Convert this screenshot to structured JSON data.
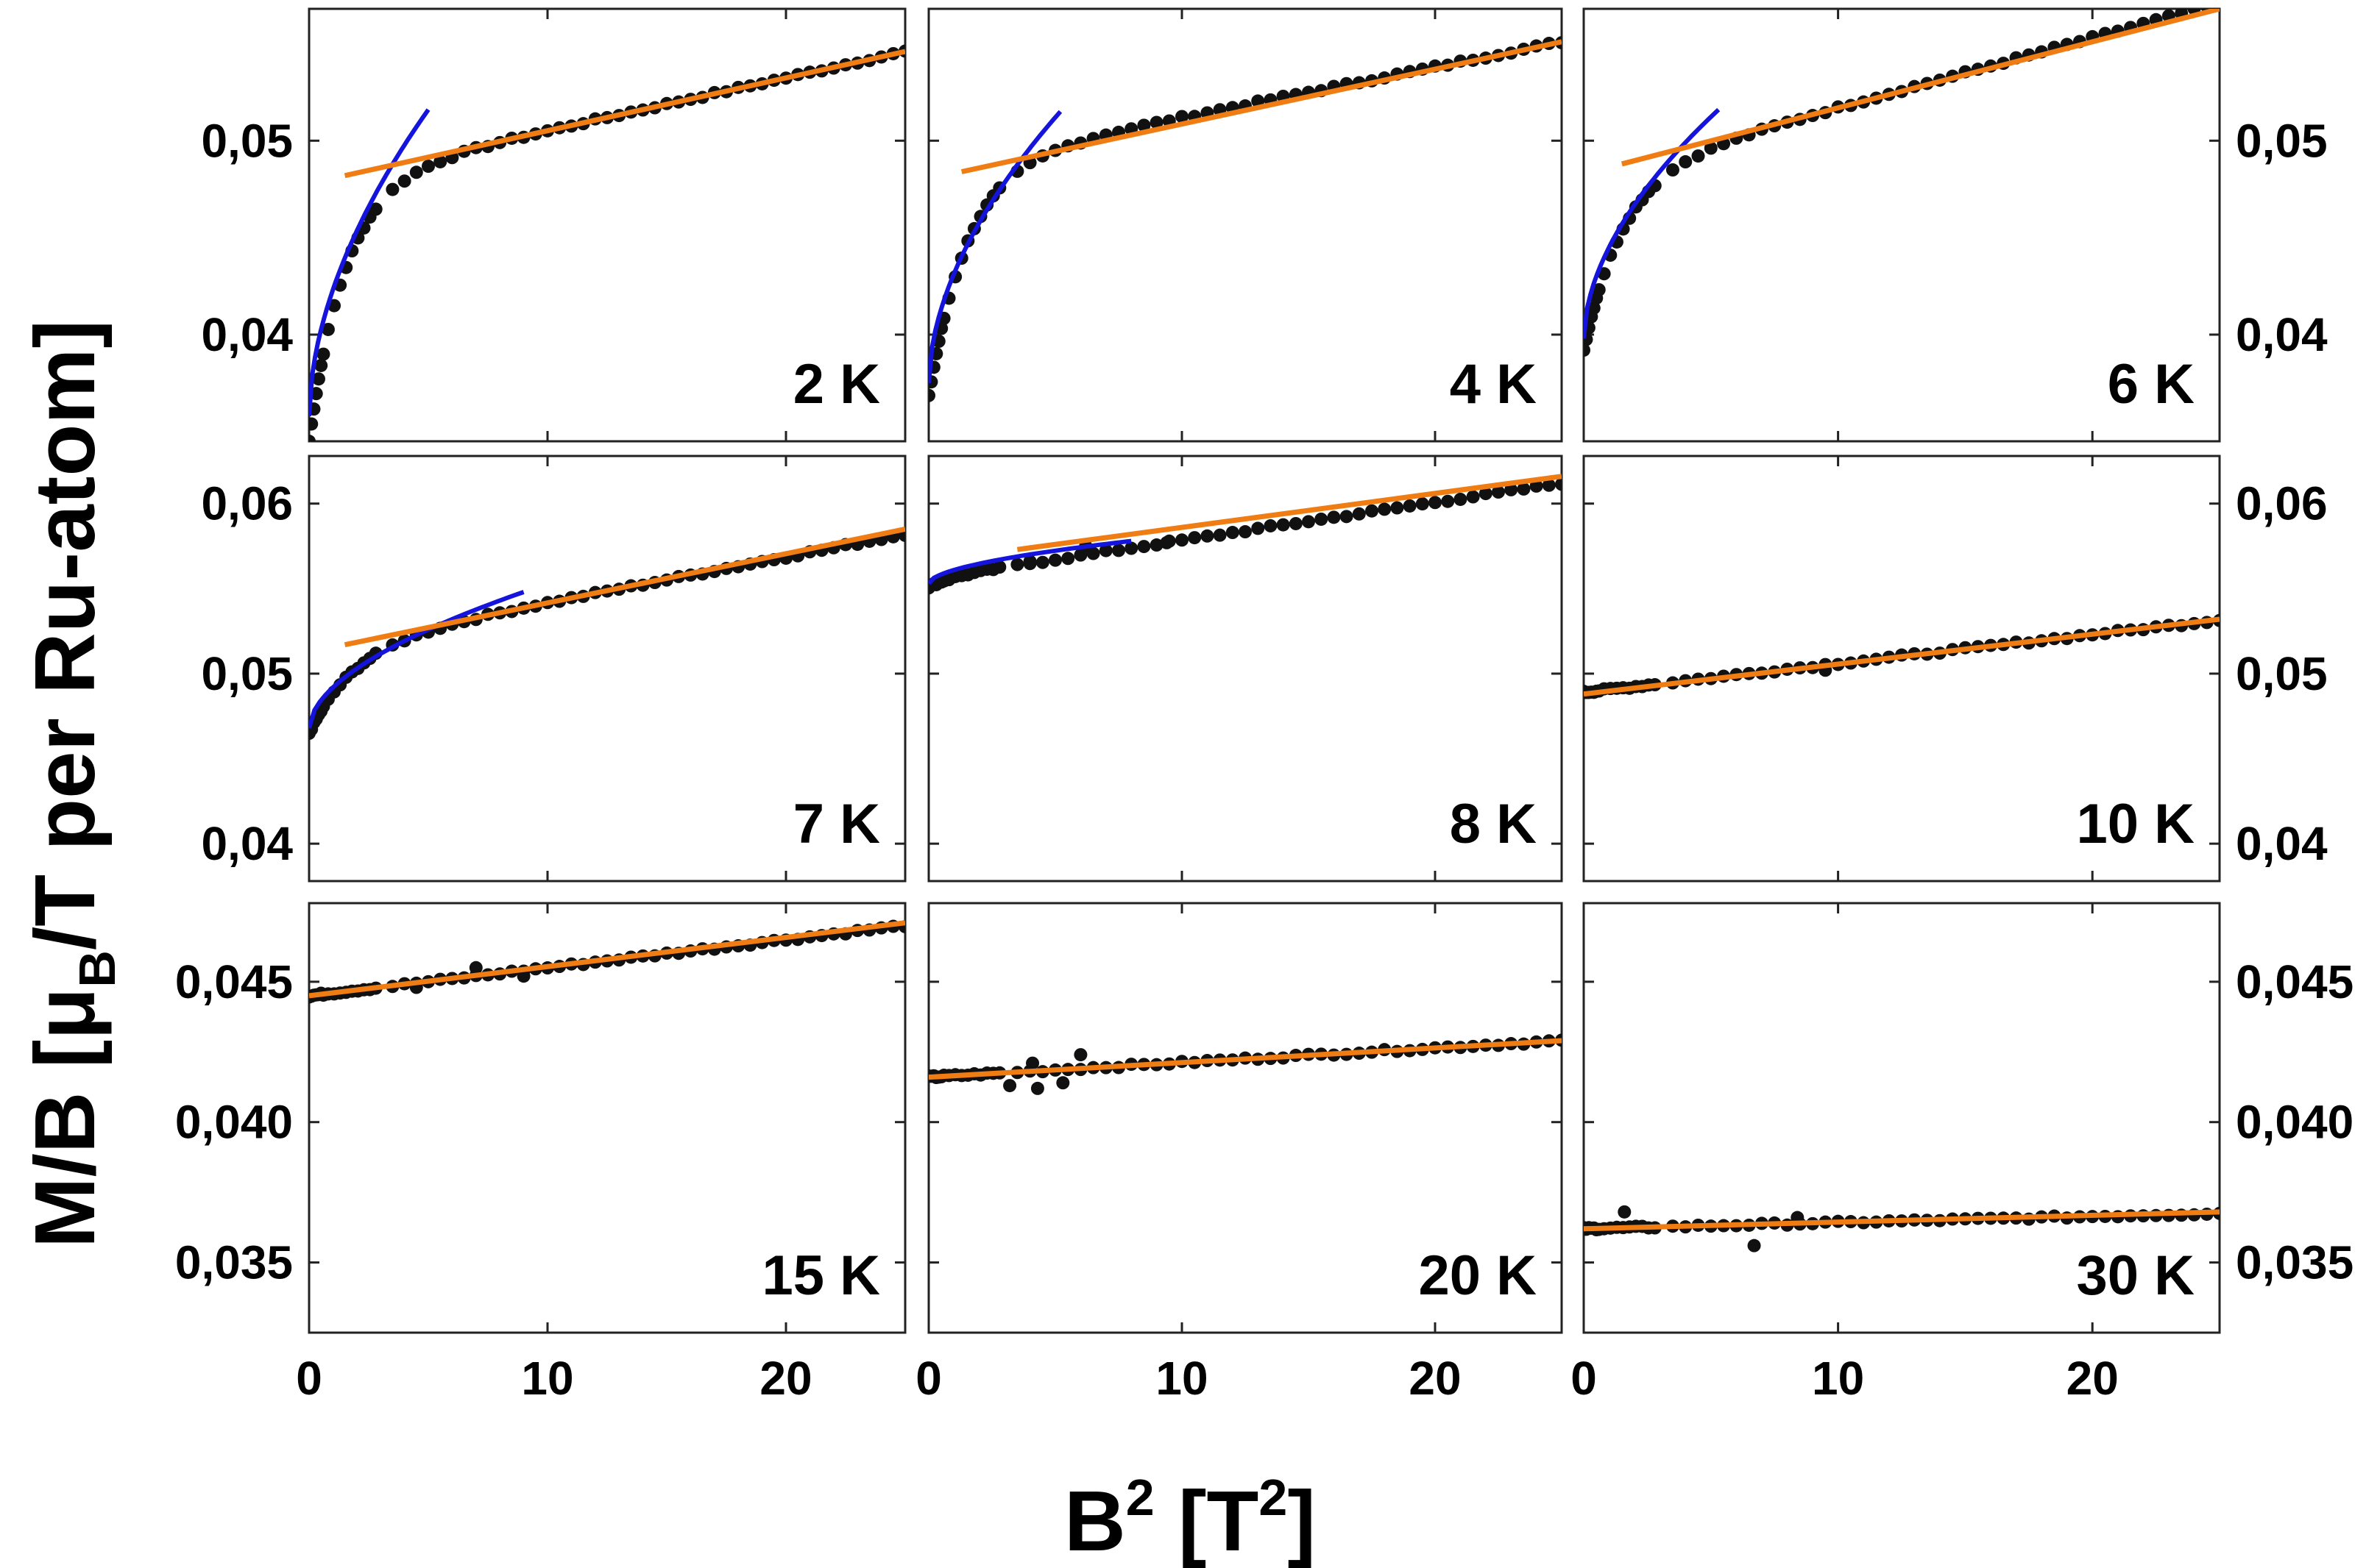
{
  "chart_data": {
    "type": "scatter",
    "layout": "3x3 panel grid",
    "xlabel": {
      "main": "B",
      "sup1": "2",
      "unit_open": " [T",
      "sup2": "2",
      "unit_close": "]"
    },
    "ylabel": {
      "main": "M/B [",
      "mu": "μ",
      "sub": "B",
      "rest": "/T per Ru-atom]"
    },
    "xlim": [
      0,
      25
    ],
    "x_ticks": [
      0,
      10,
      20
    ],
    "x_tick_labels": [
      "0",
      "10",
      "20"
    ],
    "rows": [
      {
        "ylim": [
          0.0345,
          0.0568
        ],
        "y_ticks": [
          0.04,
          0.05
        ],
        "y_tick_labels": [
          "0,04",
          "0,05"
        ]
      },
      {
        "ylim": [
          0.0378,
          0.0628
        ],
        "y_ticks": [
          0.04,
          0.05,
          0.06
        ],
        "y_tick_labels": [
          "0,04",
          "0,05",
          "0,06"
        ]
      },
      {
        "ylim": [
          0.0325,
          0.0478
        ],
        "y_ticks": [
          0.035,
          0.04,
          0.045
        ],
        "y_tick_labels": [
          "0,035",
          "0,040",
          "0,045"
        ]
      }
    ],
    "panels": [
      {
        "label": "2 K",
        "row": 0,
        "col": 0,
        "low": {
          "a": 0.0345,
          "b": 0.0075,
          "xmax": 2.4
        },
        "high": {
          "a": 0.0478,
          "b": 0.000272
        },
        "blue_fit": {
          "x": [
            0,
            5
          ],
          "y": [
            0.0358,
            0.0516
          ]
        },
        "orange_fit": {
          "x": [
            1.5,
            25
          ],
          "y": [
            0.0482,
            0.0546
          ]
        },
        "outliers": []
      },
      {
        "label": "4 K",
        "row": 0,
        "col": 1,
        "low": {
          "a": 0.0368,
          "b": 0.0068,
          "xmax": 2.4
        },
        "high": {
          "a": 0.0486,
          "b": 0.00026
        },
        "blue_fit": {
          "x": [
            0,
            5.2
          ],
          "y": [
            0.0375,
            0.0515
          ]
        },
        "orange_fit": {
          "x": [
            1.3,
            25
          ],
          "y": [
            0.0484,
            0.0551
          ]
        },
        "outliers": []
      },
      {
        "label": "6 K",
        "row": 0,
        "col": 2,
        "low": {
          "a": 0.0392,
          "b": 0.006,
          "xmax": 2.4
        },
        "high": {
          "a": 0.0481,
          "b": 0.00036
        },
        "blue_fit": {
          "x": [
            0,
            5.3
          ],
          "y": [
            0.0398,
            0.0516
          ]
        },
        "orange_fit": {
          "x": [
            1.5,
            25
          ],
          "y": [
            0.0488,
            0.0568
          ]
        },
        "outliers": []
      },
      {
        "label": "7 K",
        "row": 1,
        "col": 0,
        "low": {
          "a": 0.0465,
          "b": 0.0035,
          "xmax": 3
        },
        "high": {
          "a": 0.0515,
          "b": 0.000268
        },
        "blue_fit": {
          "x": [
            0,
            9
          ],
          "y": [
            0.0468,
            0.0548
          ]
        },
        "orange_fit": {
          "x": [
            1.5,
            25
          ],
          "y": [
            0.0517,
            0.0585
          ]
        },
        "outliers": []
      },
      {
        "label": "8 K",
        "row": 1,
        "col": 1,
        "low": {
          "a": 0.0551,
          "b": 0.001,
          "xmax": 1.5
        },
        "high": {
          "a": 0.0556,
          "b": 0.000224
        },
        "blue_fit": {
          "x": [
            0,
            8
          ],
          "y": [
            0.0553,
            0.0578
          ]
        },
        "orange_fit": {
          "x": [
            3.5,
            25
          ],
          "y": [
            0.0573,
            0.0616
          ]
        },
        "outliers": [
          [
            4.0,
            0.0566
          ],
          [
            6.2,
            0.0575
          ],
          [
            9.4,
            0.0577
          ]
        ]
      },
      {
        "label": "10 K",
        "row": 1,
        "col": 2,
        "low": {
          "a": 0.0488,
          "b": 0,
          "xmax": 0
        },
        "high": {
          "a": 0.0489,
          "b": 0.00017
        },
        "blue_fit": null,
        "orange_fit": {
          "x": [
            0,
            25
          ],
          "y": [
            0.0488,
            0.0532
          ]
        },
        "outliers": [
          [
            9.5,
            0.0502
          ]
        ]
      },
      {
        "label": "15 K",
        "row": 2,
        "col": 0,
        "low": {
          "a": 0.0448,
          "b": 0,
          "xmax": 0
        },
        "high": {
          "a": 0.0445,
          "b": 0.0001
        },
        "blue_fit": null,
        "orange_fit": {
          "x": [
            0,
            25
          ],
          "y": [
            0.0445,
            0.0471
          ]
        },
        "outliers": [
          [
            4.5,
            0.0448
          ],
          [
            9.0,
            0.0452
          ],
          [
            7.0,
            0.0455
          ]
        ]
      },
      {
        "label": "20 K",
        "row": 2,
        "col": 1,
        "low": {
          "a": 0.0415,
          "b": 0,
          "xmax": 0
        },
        "high": {
          "a": 0.0416,
          "b": 5.2e-05
        },
        "blue_fit": null,
        "orange_fit": {
          "x": [
            0,
            25
          ],
          "y": [
            0.0416,
            0.0429
          ]
        },
        "outliers": [
          [
            3.2,
            0.0413
          ],
          [
            4.3,
            0.0412
          ],
          [
            4.1,
            0.0421
          ],
          [
            5.3,
            0.0414
          ],
          [
            6.0,
            0.0424
          ]
        ]
      },
      {
        "label": "30 K",
        "row": 2,
        "col": 2,
        "low": {
          "a": 0.0362,
          "b": 0,
          "xmax": 0
        },
        "high": {
          "a": 0.0362,
          "b": 2.2e-05
        },
        "blue_fit": null,
        "orange_fit": {
          "x": [
            0,
            25
          ],
          "y": [
            0.0362,
            0.0368
          ]
        },
        "outliers": [
          [
            6.7,
            0.0356
          ],
          [
            1.6,
            0.0368
          ],
          [
            8.4,
            0.0366
          ]
        ]
      }
    ],
    "colors": {
      "points": "#111111",
      "blue_fit": "#1414dc",
      "orange_fit": "#f07d14",
      "frame": "#222222"
    }
  }
}
